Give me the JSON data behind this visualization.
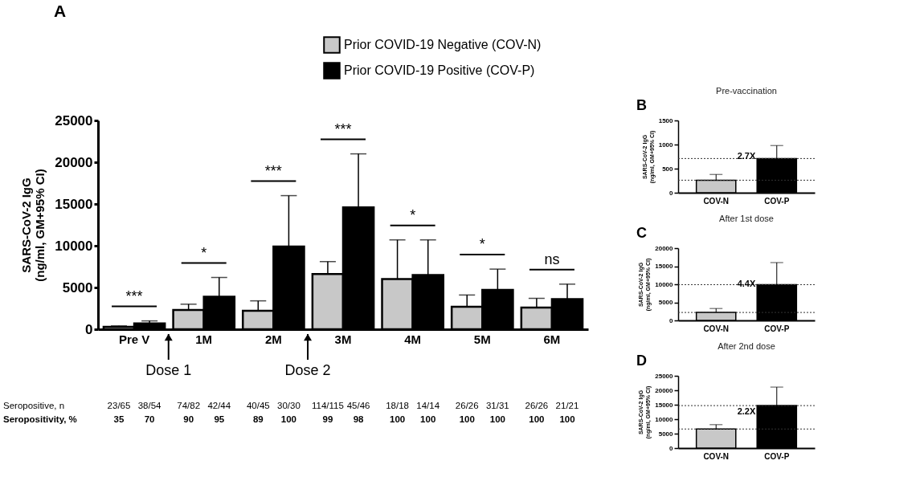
{
  "chart_data": [
    {
      "type": "bar",
      "ylabel": "SARS-CoV-2 IgG (ng/ml, GM+95% CI)",
      "categories": [
        "Pre V",
        "1M",
        "2M",
        "3M",
        "4M",
        "5M",
        "6M"
      ],
      "series": [
        {
          "name": "Prior COVID-19 Negative (COV-N)",
          "color": "#c8c8c8",
          "values": [
            300,
            2300,
            2200,
            6600,
            6000,
            2700,
            2600
          ],
          "errors": [
            [
              300,
              400
            ],
            [
              2300,
              3000
            ],
            [
              2200,
              3400
            ],
            [
              6600,
              8100
            ],
            [
              6000,
              10700
            ],
            [
              2700,
              4100
            ],
            [
              2600,
              3700
            ]
          ]
        },
        {
          "name": "Prior COVID-19 Positive (COV-P)",
          "color": "#000000",
          "values": [
            700,
            3900,
            9900,
            14600,
            6500,
            4700,
            3600
          ],
          "errors": [
            [
              700,
              1000
            ],
            [
              3900,
              6200
            ],
            [
              9900,
              16000
            ],
            [
              14600,
              21000
            ],
            [
              6500,
              10700
            ],
            [
              4700,
              7200
            ],
            [
              3600,
              5400
            ]
          ]
        }
      ],
      "ylim": [
        0,
        25000
      ],
      "yticks": [
        0,
        5000,
        10000,
        15000,
        20000,
        25000
      ],
      "legend": "top right",
      "annotations": [
        "A",
        "Dose 1",
        "Dose 2",
        "***",
        "*",
        "***",
        "***",
        "*",
        "*",
        "ns",
        "Seropositive, n",
        "23/65",
        "38/54",
        "74/82",
        "42/44",
        "40/45",
        "30/30",
        "114/115",
        "45/46",
        "18/18",
        "14/14",
        "26/26",
        "31/31",
        "26/26",
        "21/21",
        "Seropositivity, %",
        "35",
        "70",
        "90",
        "95",
        "89",
        "100",
        "99",
        "98",
        "100",
        "100",
        "100",
        "100",
        "100",
        "100"
      ]
    },
    {
      "type": "bar",
      "title": "Pre-vaccination",
      "ylabel": "SARS-CoV-2 IgG (ng/ml, GM+95% CI)",
      "categories": [
        "COV-N",
        "COV-P"
      ],
      "values": [
        260,
        710
      ],
      "colors": [
        "#c8c8c8",
        "#000000"
      ],
      "errors": [
        [
          260,
          380
        ],
        [
          710,
          980
        ]
      ],
      "ylim": [
        0,
        1500
      ],
      "yticks": [
        0,
        500,
        1000,
        1500
      ],
      "ref_lines": [
        {
          "axis": "y",
          "value": 260,
          "line_style": "dotted"
        },
        {
          "axis": "y",
          "value": 710,
          "line_style": "dotted"
        }
      ],
      "annotations": [
        "B",
        "2.7X"
      ]
    },
    {
      "type": "bar",
      "title": "After 1st dose",
      "ylabel": "SARS-CoV-2 IgG (ng/ml, GM+95% CI)",
      "categories": [
        "COV-N",
        "COV-P"
      ],
      "values": [
        2200,
        9900
      ],
      "colors": [
        "#c8c8c8",
        "#000000"
      ],
      "errors": [
        [
          2200,
          3300
        ],
        [
          9900,
          16000
        ]
      ],
      "ylim": [
        0,
        20000
      ],
      "yticks": [
        0,
        5000,
        10000,
        15000,
        20000
      ],
      "ref_lines": [
        {
          "axis": "y",
          "value": 2200,
          "line_style": "dotted"
        },
        {
          "axis": "y",
          "value": 9900,
          "line_style": "dotted"
        }
      ],
      "annotations": [
        "C",
        "4.4X"
      ]
    },
    {
      "type": "bar",
      "title": "After 2nd dose",
      "ylabel": "SARS-CoV-2 IgG (ng/ml, GM+95% CI)",
      "categories": [
        "COV-N",
        "COV-P"
      ],
      "values": [
        6600,
        14700
      ],
      "colors": [
        "#c8c8c8",
        "#000000"
      ],
      "errors": [
        [
          6600,
          8100
        ],
        [
          14700,
          21100
        ]
      ],
      "ylim": [
        0,
        25000
      ],
      "yticks": [
        0,
        5000,
        10000,
        15000,
        20000,
        25000
      ],
      "ref_lines": [
        {
          "axis": "y",
          "value": 6600,
          "line_style": "dotted"
        },
        {
          "axis": "y",
          "value": 14700,
          "line_style": "dotted"
        }
      ],
      "annotations": [
        "D",
        "2.2X"
      ]
    }
  ]
}
